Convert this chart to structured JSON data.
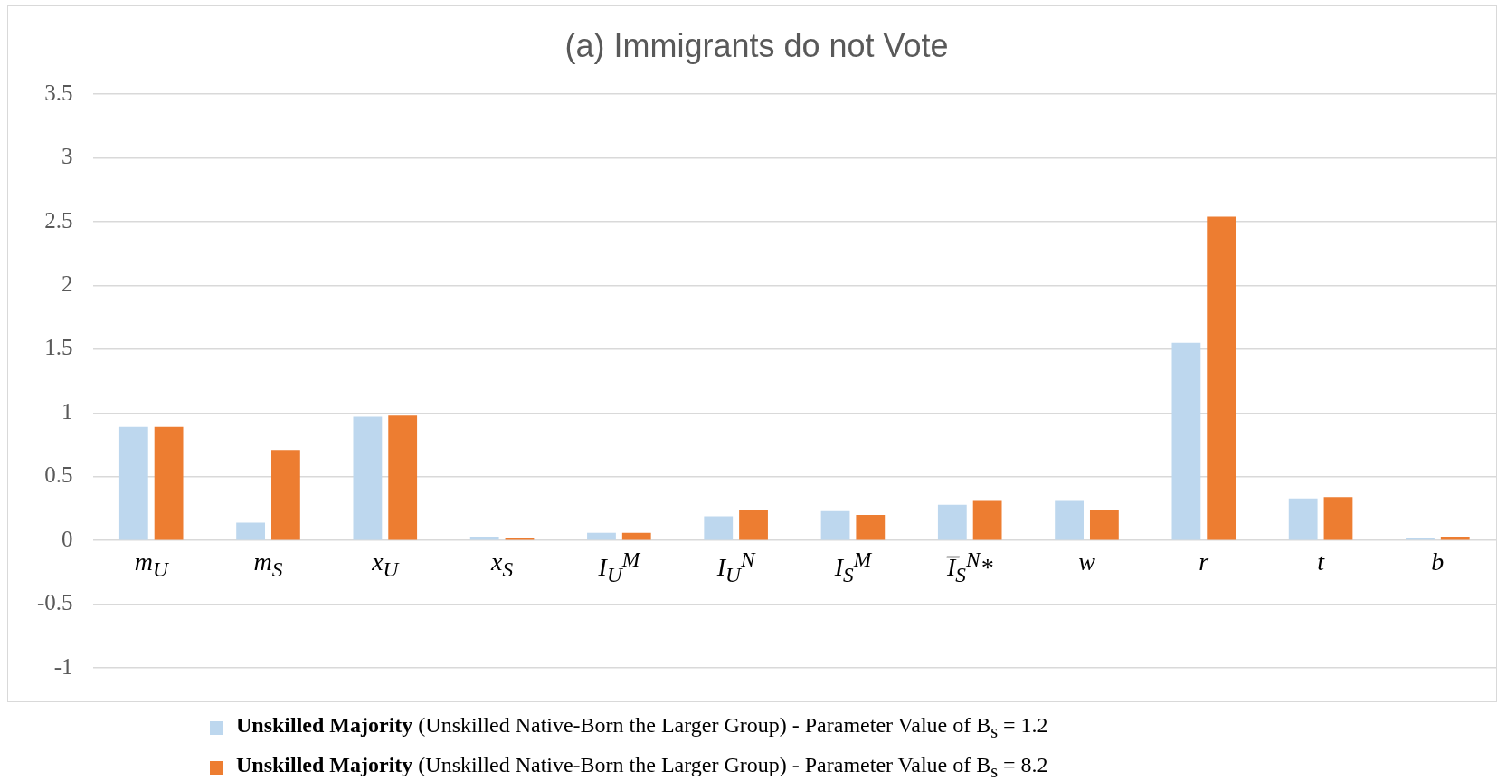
{
  "chart_data": {
    "type": "bar",
    "title": "(a) Immigrants do not Vote",
    "categories": [
      "m$_{U}$",
      "m$_{S}$",
      "x$_{U}$",
      "x$_{S}$",
      "I$_{U}$$^{M}$",
      "I$_{U}$$^{N}$",
      "I$_{S}$$^{M}$",
      "I̅$_{S}$$^{N}$*",
      "w",
      "r",
      "t",
      "b"
    ],
    "series": [
      {
        "name": "Unskilled Majority (Unskilled Native-Born the Larger Group) - Parameter Value of B$_{s}$ = 1.2",
        "color": "#bdd7ee",
        "values": [
          0.89,
          0.14,
          0.97,
          0.03,
          0.06,
          0.19,
          0.23,
          0.28,
          0.31,
          1.55,
          0.33,
          0.02
        ]
      },
      {
        "name": "Unskilled Majority (Unskilled Native-Born the Larger Group) - Parameter Value of B$_{s}$ = 8.2",
        "color": "#ed7d31",
        "values": [
          0.89,
          0.71,
          0.98,
          0.02,
          0.06,
          0.24,
          0.2,
          0.31,
          0.24,
          2.54,
          0.34,
          0.03
        ]
      }
    ],
    "ylim": [
      -1,
      3.5
    ],
    "yticks": [
      -1,
      -0.5,
      0,
      0.5,
      1,
      1.5,
      2,
      2.5,
      3,
      3.5
    ],
    "grid": "y",
    "legend": "bottom"
  }
}
